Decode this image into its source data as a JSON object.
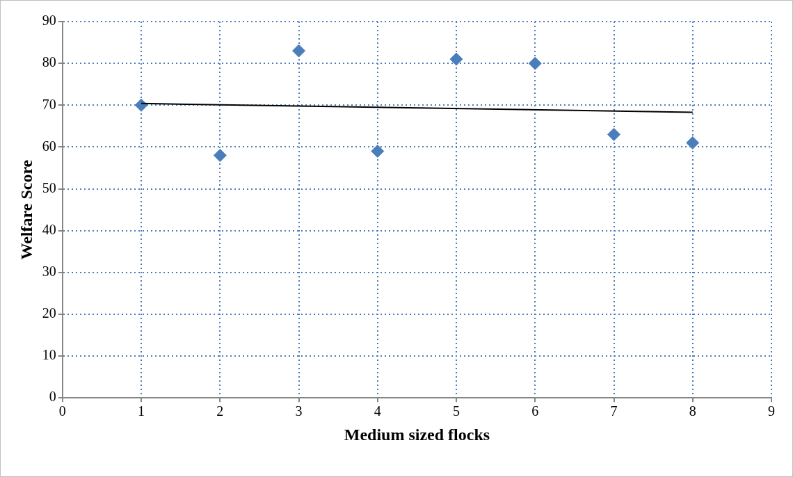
{
  "chart_data": {
    "type": "scatter",
    "xlabel": "Medium sized flocks",
    "ylabel": "Welfare Score",
    "series": [
      {
        "color": "#4a7ebb",
        "x": [
          1,
          2,
          3,
          4,
          5,
          6,
          7,
          8
        ],
        "values": [
          70,
          58,
          83,
          59,
          81,
          80,
          63,
          61
        ],
        "marker": "diamond"
      },
      {
        "type": "line",
        "color": "#000000",
        "x": [
          1,
          8
        ],
        "values": [
          70.4,
          68.3
        ],
        "marker": "none"
      }
    ],
    "xlim": [
      0,
      9
    ],
    "xticks": [
      0,
      1,
      2,
      3,
      4,
      5,
      6,
      7,
      8,
      9
    ],
    "ylim": [
      0,
      90
    ],
    "yticks": [
      0,
      10,
      20,
      30,
      40,
      50,
      60,
      70,
      80,
      90
    ],
    "grid": true,
    "legend": false
  }
}
